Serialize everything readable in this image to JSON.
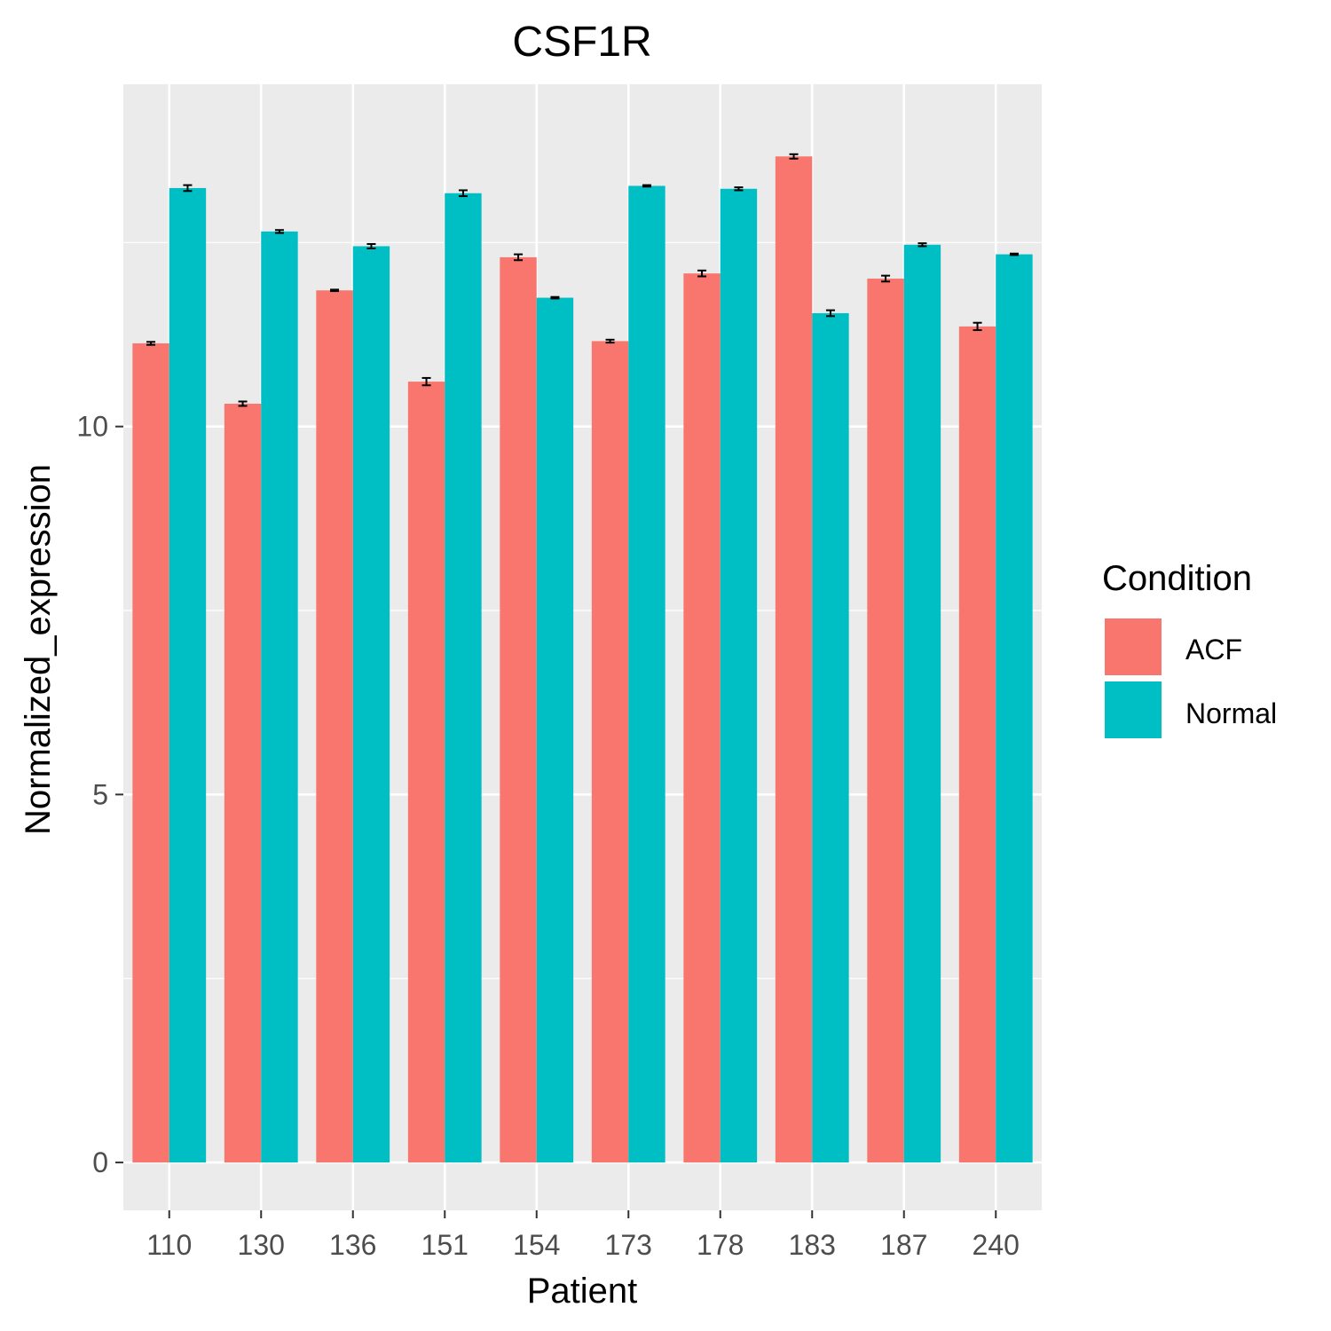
{
  "colors": {
    "panel_background": "#EBEBEB",
    "grid_line": "#FFFFFF",
    "ACF": "#F8766D",
    "Normal": "#00BFC4",
    "error_bar": "#000000"
  },
  "chart_data": {
    "type": "bar",
    "title": "CSF1R",
    "xlabel": "Patient",
    "ylabel": "Normalized_expression",
    "categories": [
      "110",
      "130",
      "136",
      "151",
      "154",
      "173",
      "178",
      "183",
      "187",
      "240"
    ],
    "ylim": [
      -0.65,
      14.65
    ],
    "yticks": [
      0,
      5,
      10
    ],
    "ytick_labels": [
      "0",
      "5",
      "10"
    ],
    "grid": true,
    "legend": {
      "title": "Condition",
      "position": "right",
      "entries": [
        "ACF",
        "Normal"
      ]
    },
    "series": [
      {
        "name": "ACF",
        "values": [
          11.13,
          10.31,
          11.85,
          10.61,
          12.3,
          11.16,
          12.08,
          13.67,
          12.01,
          11.36
        ],
        "errors": [
          0.02,
          0.03,
          0.01,
          0.05,
          0.04,
          0.02,
          0.04,
          0.03,
          0.04,
          0.05
        ]
      },
      {
        "name": "Normal",
        "values": [
          13.24,
          12.65,
          12.45,
          13.17,
          11.75,
          13.27,
          13.23,
          11.54,
          12.47,
          12.34
        ],
        "errors": [
          0.04,
          0.02,
          0.03,
          0.04,
          0.01,
          0.01,
          0.02,
          0.04,
          0.02,
          0.01
        ]
      }
    ]
  }
}
